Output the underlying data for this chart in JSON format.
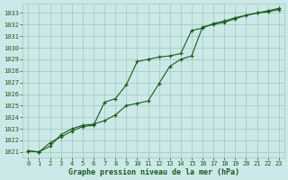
{
  "title": "Graphe pression niveau de la mer (hPa)",
  "bg_color": "#cce8e8",
  "grid_color": "#99ccbb",
  "line_color": "#1a5c1a",
  "xlim": [
    -0.5,
    23.5
  ],
  "ylim": [
    1020.5,
    1033.8
  ],
  "yticks": [
    1021,
    1022,
    1023,
    1024,
    1025,
    1026,
    1027,
    1028,
    1029,
    1030,
    1031,
    1032,
    1033
  ],
  "xticks": [
    0,
    1,
    2,
    3,
    4,
    5,
    6,
    7,
    8,
    9,
    10,
    11,
    12,
    13,
    14,
    15,
    16,
    17,
    18,
    19,
    20,
    21,
    22,
    23
  ],
  "series1_x": [
    0,
    1,
    2,
    3,
    4,
    5,
    6,
    7,
    8,
    9,
    10,
    11,
    12,
    13,
    14,
    15,
    16,
    17,
    18,
    19,
    20,
    21,
    22,
    23
  ],
  "series1_y": [
    1021.1,
    1021.0,
    1021.8,
    1022.3,
    1022.8,
    1023.2,
    1023.3,
    1025.3,
    1025.6,
    1026.8,
    1028.8,
    1029.0,
    1029.2,
    1029.3,
    1029.5,
    1031.5,
    1031.7,
    1032.1,
    1032.3,
    1032.6,
    1032.8,
    1033.0,
    1033.1,
    1033.3
  ],
  "series2_x": [
    0,
    1,
    2,
    3,
    4,
    5,
    6,
    7,
    8,
    9,
    10,
    11,
    12,
    13,
    14,
    15,
    16,
    17,
    18,
    19,
    20,
    21,
    22,
    23
  ],
  "series2_y": [
    1021.1,
    1021.0,
    1021.5,
    1022.5,
    1023.0,
    1023.3,
    1023.4,
    1023.7,
    1024.2,
    1025.0,
    1025.2,
    1025.4,
    1026.9,
    1028.4,
    1029.0,
    1029.3,
    1031.8,
    1032.0,
    1032.2,
    1032.5,
    1032.8,
    1033.0,
    1033.2,
    1033.4
  ],
  "ylabel_fontsize": 5,
  "xlabel_fontsize": 6,
  "tick_fontsize": 5
}
